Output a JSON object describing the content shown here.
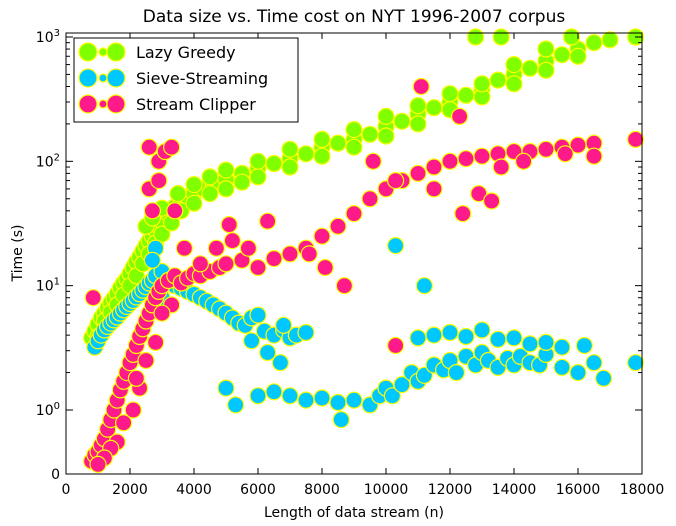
{
  "chart_data": {
    "type": "scatter",
    "title": "Data size vs. Time cost on NYT 1996-2007 corpus",
    "xlabel": "Length of data stream (n)",
    "ylabel": "Time (s)",
    "xlim": [
      0,
      18000
    ],
    "y_scale": "symlog",
    "ylim": [
      0,
      1000
    ],
    "x_ticks": [
      0,
      2000,
      4000,
      6000,
      8000,
      10000,
      12000,
      14000,
      16000,
      18000
    ],
    "x_tick_labels": [
      "0",
      "2000",
      "4000",
      "6000",
      "8000",
      "10000",
      "12000",
      "14000",
      "16000",
      "18000"
    ],
    "y_ticks": [
      0,
      1,
      10,
      100,
      1000
    ],
    "y_tick_labels": [
      "0",
      "10^0",
      "10^1",
      "10^2",
      "10^3"
    ],
    "grid": false,
    "legend_position": "top-left",
    "series": [
      {
        "name": "Lazy Greedy",
        "color": "#80ff00",
        "edge": "#ffff00",
        "points": [
          [
            800,
            3.8
          ],
          [
            900,
            4.3
          ],
          [
            1000,
            4.9
          ],
          [
            1100,
            5.5
          ],
          [
            1200,
            6.0
          ],
          [
            1300,
            6.6
          ],
          [
            1400,
            7.3
          ],
          [
            1500,
            7.9
          ],
          [
            1600,
            8.6
          ],
          [
            1700,
            9.6
          ],
          [
            1800,
            10.5
          ],
          [
            1900,
            11.3
          ],
          [
            2000,
            12.5
          ],
          [
            2100,
            14.0
          ],
          [
            2200,
            15.5
          ],
          [
            2300,
            17.0
          ],
          [
            2400,
            19.0
          ],
          [
            2500,
            21.0
          ],
          [
            2600,
            23.0
          ],
          [
            2700,
            25.0
          ],
          [
            2800,
            28.0
          ],
          [
            2900,
            30.0
          ],
          [
            3000,
            33.0
          ],
          [
            3200,
            38.0
          ],
          [
            3400,
            43.0
          ],
          [
            3600,
            48.0
          ],
          [
            3800,
            52.0
          ],
          [
            4000,
            55.0
          ],
          [
            4300,
            60.0
          ],
          [
            4600,
            66.0
          ],
          [
            5000,
            72.0
          ],
          [
            5500,
            80.0
          ],
          [
            6000,
            88.0
          ],
          [
            6500,
            96.0
          ],
          [
            7000,
            105.0
          ],
          [
            7500,
            115.0
          ],
          [
            8000,
            130.0
          ],
          [
            8500,
            140.0
          ],
          [
            9000,
            150.0
          ],
          [
            9500,
            165.0
          ],
          [
            10000,
            190.0
          ],
          [
            10500,
            210.0
          ],
          [
            11000,
            240.0
          ],
          [
            11500,
            270.0
          ],
          [
            12000,
            300.0
          ],
          [
            12500,
            340.0
          ],
          [
            13000,
            380.0
          ],
          [
            13500,
            450.0
          ],
          [
            14000,
            500.0
          ],
          [
            14500,
            560.0
          ],
          [
            15000,
            640.0
          ],
          [
            15500,
            720.0
          ],
          [
            16000,
            800.0
          ],
          [
            16500,
            900.0
          ],
          [
            17000,
            950.0
          ],
          [
            17800,
            1000.0
          ],
          [
            1000,
            3.9
          ],
          [
            1200,
            5.2
          ],
          [
            1400,
            6.1
          ],
          [
            1600,
            7.0
          ],
          [
            1800,
            8.4
          ],
          [
            2000,
            10.0
          ],
          [
            2200,
            12.0
          ],
          [
            2400,
            15.0
          ],
          [
            2600,
            18.0
          ],
          [
            2800,
            22.0
          ],
          [
            3000,
            26.0
          ],
          [
            3300,
            32.0
          ],
          [
            3600,
            40.0
          ],
          [
            4000,
            46.0
          ],
          [
            4500,
            55.0
          ],
          [
            5000,
            60.0
          ],
          [
            5500,
            68.0
          ],
          [
            6000,
            75.0
          ],
          [
            7000,
            90.0
          ],
          [
            8000,
            110.0
          ],
          [
            9000,
            130.0
          ],
          [
            10000,
            160.0
          ],
          [
            11000,
            200.0
          ],
          [
            12000,
            260.0
          ],
          [
            13000,
            330.0
          ],
          [
            14000,
            420.0
          ],
          [
            15000,
            540.0
          ],
          [
            16000,
            700.0
          ],
          [
            2500,
            30.0
          ],
          [
            2700,
            35.0
          ],
          [
            3000,
            42.0
          ],
          [
            3500,
            55.0
          ],
          [
            4000,
            65.0
          ],
          [
            4500,
            75.0
          ],
          [
            5000,
            85.0
          ],
          [
            6000,
            100.0
          ],
          [
            7000,
            125.0
          ],
          [
            8000,
            150.0
          ],
          [
            9000,
            180.0
          ],
          [
            10000,
            230.0
          ],
          [
            11000,
            280.0
          ],
          [
            12000,
            350.0
          ],
          [
            13000,
            420.0
          ],
          [
            14000,
            600.0
          ],
          [
            15000,
            800.0
          ],
          [
            15800,
            1000.0
          ],
          [
            12800,
            1000.0
          ],
          [
            13600,
            1000.0
          ]
        ]
      },
      {
        "name": "Sieve-Streaming",
        "color": "#00c8ff",
        "edge": "#ffff00",
        "points": [
          [
            900,
            3.2
          ],
          [
            1000,
            3.6
          ],
          [
            1100,
            4.0
          ],
          [
            1200,
            4.4
          ],
          [
            1300,
            4.7
          ],
          [
            1400,
            5.0
          ],
          [
            1500,
            5.3
          ],
          [
            1600,
            5.6
          ],
          [
            1700,
            6.0
          ],
          [
            1800,
            6.4
          ],
          [
            1900,
            6.8
          ],
          [
            2000,
            7.2
          ],
          [
            2100,
            7.6
          ],
          [
            2200,
            8.1
          ],
          [
            2300,
            8.6
          ],
          [
            2400,
            9.2
          ],
          [
            2500,
            9.8
          ],
          [
            2600,
            10.5
          ],
          [
            2700,
            11.0
          ],
          [
            2800,
            12.0
          ],
          [
            3000,
            13.0
          ],
          [
            2800,
            20.0
          ],
          [
            2700,
            16.0
          ],
          [
            3200,
            11.0
          ],
          [
            3400,
            10.0
          ],
          [
            3600,
            9.5
          ],
          [
            3800,
            9.0
          ],
          [
            4000,
            8.5
          ],
          [
            4200,
            8.0
          ],
          [
            4400,
            7.5
          ],
          [
            4600,
            7.0
          ],
          [
            4800,
            6.5
          ],
          [
            5000,
            6.0
          ],
          [
            5200,
            5.5
          ],
          [
            5400,
            5.0
          ],
          [
            5600,
            4.8
          ],
          [
            5800,
            5.5
          ],
          [
            6000,
            5.8
          ],
          [
            6200,
            4.3
          ],
          [
            6500,
            4.0
          ],
          [
            6800,
            4.4
          ],
          [
            7000,
            3.8
          ],
          [
            7200,
            4.0
          ],
          [
            7500,
            4.2
          ],
          [
            5300,
            1.1
          ],
          [
            5000,
            1.5
          ],
          [
            6000,
            1.3
          ],
          [
            6500,
            1.4
          ],
          [
            7000,
            1.3
          ],
          [
            7500,
            1.2
          ],
          [
            8000,
            1.25
          ],
          [
            8500,
            1.15
          ],
          [
            9000,
            1.2
          ],
          [
            9500,
            1.1
          ],
          [
            9800,
            1.3
          ],
          [
            10000,
            1.5
          ],
          [
            10200,
            1.3
          ],
          [
            10500,
            1.6
          ],
          [
            10800,
            2.0
          ],
          [
            11000,
            1.7
          ],
          [
            11200,
            1.9
          ],
          [
            11500,
            2.3
          ],
          [
            11800,
            2.1
          ],
          [
            12000,
            2.5
          ],
          [
            12200,
            2.0
          ],
          [
            12500,
            2.7
          ],
          [
            12800,
            2.3
          ],
          [
            13000,
            2.9
          ],
          [
            13200,
            2.5
          ],
          [
            13500,
            2.2
          ],
          [
            13800,
            2.6
          ],
          [
            14000,
            2.3
          ],
          [
            14200,
            2.7
          ],
          [
            14500,
            2.4
          ],
          [
            14800,
            2.3
          ],
          [
            15000,
            2.8
          ],
          [
            15500,
            2.2
          ],
          [
            16000,
            2.0
          ],
          [
            16500,
            2.4
          ],
          [
            16800,
            1.8
          ],
          [
            17800,
            2.4
          ],
          [
            11000,
            3.8
          ],
          [
            11500,
            4.0
          ],
          [
            12000,
            4.2
          ],
          [
            12500,
            3.9
          ],
          [
            13000,
            4.4
          ],
          [
            13500,
            3.7
          ],
          [
            14000,
            3.8
          ],
          [
            14500,
            3.4
          ],
          [
            15000,
            3.5
          ],
          [
            15500,
            3.2
          ],
          [
            16200,
            3.3
          ],
          [
            11200,
            10.0
          ],
          [
            10300,
            21.0
          ],
          [
            8600,
            0.85
          ],
          [
            6800,
            4.8
          ],
          [
            5800,
            3.6
          ],
          [
            6300,
            2.9
          ],
          [
            6700,
            2.4
          ],
          [
            3000,
            8.0
          ]
        ]
      },
      {
        "name": "Stream Clipper",
        "color": "#ff1a8c",
        "edge": "#ffff00",
        "points": [
          [
            800,
            0.2
          ],
          [
            900,
            0.3
          ],
          [
            1000,
            0.35
          ],
          [
            1100,
            0.45
          ],
          [
            1200,
            0.55
          ],
          [
            1300,
            0.7
          ],
          [
            1400,
            0.85
          ],
          [
            1500,
            1.0
          ],
          [
            1600,
            1.2
          ],
          [
            1700,
            1.45
          ],
          [
            1800,
            1.7
          ],
          [
            1900,
            2.0
          ],
          [
            2000,
            2.4
          ],
          [
            2100,
            2.8
          ],
          [
            2200,
            3.3
          ],
          [
            2300,
            3.9
          ],
          [
            2400,
            4.5
          ],
          [
            2500,
            5.2
          ],
          [
            2600,
            6.0
          ],
          [
            2700,
            7.0
          ],
          [
            2800,
            8.0
          ],
          [
            2900,
            9.0
          ],
          [
            3000,
            10.0
          ],
          [
            3200,
            11.0
          ],
          [
            3400,
            12.0
          ],
          [
            3600,
            10.5
          ],
          [
            3800,
            11.5
          ],
          [
            4000,
            12.5
          ],
          [
            4200,
            12.0
          ],
          [
            4500,
            13.0
          ],
          [
            4800,
            14.0
          ],
          [
            5000,
            15.0
          ],
          [
            5500,
            16.0
          ],
          [
            6000,
            14.0
          ],
          [
            6500,
            16.5
          ],
          [
            7000,
            18.0
          ],
          [
            7500,
            20.0
          ],
          [
            8000,
            25.0
          ],
          [
            8500,
            30.0
          ],
          [
            9000,
            38.0
          ],
          [
            9500,
            50.0
          ],
          [
            10000,
            60.0
          ],
          [
            10500,
            70.0
          ],
          [
            11000,
            80.0
          ],
          [
            11500,
            90.0
          ],
          [
            12000,
            100.0
          ],
          [
            12500,
            105.0
          ],
          [
            13000,
            110.0
          ],
          [
            13500,
            115.0
          ],
          [
            14000,
            120.0
          ],
          [
            14500,
            120.0
          ],
          [
            15000,
            125.0
          ],
          [
            15500,
            130.0
          ],
          [
            16000,
            135.0
          ],
          [
            16500,
            140.0
          ],
          [
            17800,
            150.0
          ],
          [
            11100,
            400.0
          ],
          [
            12300,
            230.0
          ],
          [
            9600,
            100.0
          ],
          [
            10300,
            70.0
          ],
          [
            6300,
            33.0
          ],
          [
            5100,
            31.0
          ],
          [
            5200,
            23.0
          ],
          [
            5700,
            20.0
          ],
          [
            3300,
            7.0
          ],
          [
            3000,
            6.0
          ],
          [
            2800,
            3.5
          ],
          [
            2500,
            2.5
          ],
          [
            2300,
            1.5
          ],
          [
            2100,
            1.0
          ],
          [
            1800,
            0.8
          ],
          [
            1600,
            0.5
          ],
          [
            1400,
            0.4
          ],
          [
            1200,
            0.25
          ],
          [
            1000,
            0.15
          ],
          [
            2600,
            60.0
          ],
          [
            2700,
            40.0
          ],
          [
            2900,
            100.0
          ],
          [
            3100,
            120.0
          ],
          [
            3300,
            130.0
          ],
          [
            2600,
            130.0
          ],
          [
            2900,
            70.0
          ],
          [
            850,
            8.0
          ],
          [
            10300,
            3.3
          ],
          [
            8700,
            10.0
          ],
          [
            8100,
            14.0
          ],
          [
            7600,
            18.0
          ],
          [
            12900,
            55.0
          ],
          [
            13600,
            90.0
          ],
          [
            14300,
            100.0
          ],
          [
            15600,
            115.0
          ],
          [
            16500,
            110.0
          ],
          [
            13300,
            48.0
          ],
          [
            12400,
            38.0
          ],
          [
            11500,
            60.0
          ],
          [
            4700,
            20.0
          ],
          [
            4200,
            15.0
          ],
          [
            3700,
            20.0
          ],
          [
            3400,
            40.0
          ],
          [
            2200,
            1.8
          ]
        ]
      }
    ]
  }
}
